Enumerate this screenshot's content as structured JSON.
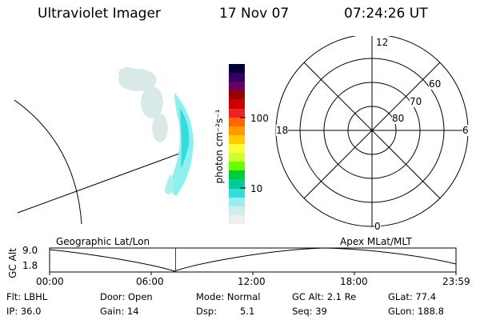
{
  "header": {
    "instrument": "Ultraviolet Imager",
    "date": "17 Nov 07",
    "time": "07:24:26 UT"
  },
  "colorbar": {
    "unit_label": "photon cm⁻²s⁻¹",
    "ticks": [
      "100",
      "10"
    ],
    "colors": [
      "#000033",
      "#330066",
      "#660066",
      "#990000",
      "#cc0000",
      "#ee2222",
      "#ff6600",
      "#ff9900",
      "#ffcc00",
      "#ffff33",
      "#ccff33",
      "#66ff00",
      "#00cc33",
      "#00cc99",
      "#33dddd",
      "#99eeee",
      "#cceeee",
      "#eeeeee"
    ]
  },
  "polar_plot": {
    "mlt_labels": [
      "12",
      "18",
      "6",
      "0"
    ],
    "lat_labels": [
      "60",
      "70",
      "80"
    ]
  },
  "timeline": {
    "ylabel": "GC Alt",
    "yticks": [
      "9.0",
      "1.8"
    ],
    "left_title": "Geographic Lat/Lon",
    "right_title": "Apex MLat/MLT",
    "xticks": [
      "00:00",
      "06:00",
      "12:00",
      "18:00",
      "23:59"
    ],
    "current_time_fraction": 0.31,
    "marker_color": "#cc0000"
  },
  "footer": {
    "flt": "Flt: LBHL",
    "ip": "IP: 36.0",
    "door": "Door: Open",
    "gain": "Gain: 14",
    "mode": "Mode: Normal",
    "dsp_label": "Dsp:",
    "dsp_value": "5.1",
    "gc_alt": "GC Alt: 2.1 Re",
    "seq": "Seq: 39",
    "glat": "GLat: 77.4",
    "glon": "GLon: 188.8"
  }
}
